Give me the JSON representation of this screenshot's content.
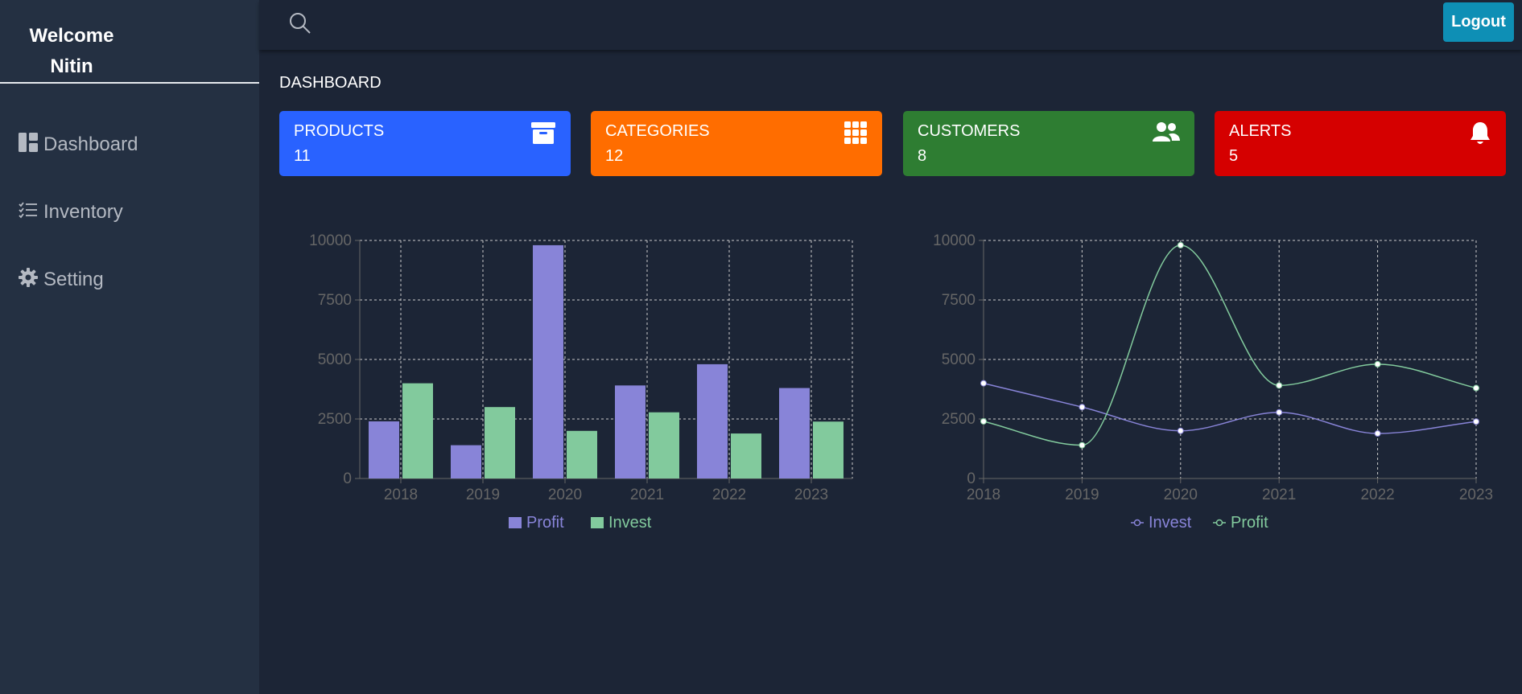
{
  "sidebar": {
    "welcome_line1": "Welcome",
    "welcome_line2": "Nitin",
    "items": [
      {
        "label": "Dashboard",
        "icon": "dashboard-icon"
      },
      {
        "label": "Inventory",
        "icon": "list-check-icon"
      },
      {
        "label": "Setting",
        "icon": "gear-icon"
      }
    ]
  },
  "header": {
    "search_icon": "search-icon",
    "logout_label": "Logout"
  },
  "page": {
    "title": "DASHBOARD"
  },
  "cards": [
    {
      "title": "PRODUCTS",
      "value": "11",
      "color": "#2962ff",
      "icon": "archive-icon"
    },
    {
      "title": "CATEGORIES",
      "value": "12",
      "color": "#ff6d00",
      "icon": "grid-icon"
    },
    {
      "title": "CUSTOMERS",
      "value": "8",
      "color": "#2e7d32",
      "icon": "users-icon"
    },
    {
      "title": "ALERTS",
      "value": "5",
      "color": "#d50000",
      "icon": "bell-icon"
    }
  ],
  "colors": {
    "profit": "#8884d8",
    "invest": "#82ca9d",
    "axis": "#666666",
    "grid": "#cccccc"
  },
  "chart_data": [
    {
      "type": "bar",
      "categories": [
        "2018",
        "2019",
        "2020",
        "2021",
        "2022",
        "2023"
      ],
      "series": [
        {
          "name": "Profit",
          "values": [
            2400,
            1398,
            9800,
            3908,
            4800,
            3800
          ]
        },
        {
          "name": "Invest",
          "values": [
            4000,
            3000,
            2000,
            2780,
            1890,
            2390
          ]
        }
      ],
      "yticks": [
        "0",
        "2500",
        "5000",
        "7500",
        "10000"
      ],
      "ylim": [
        0,
        10000
      ],
      "grid": true,
      "legend": "bottom"
    },
    {
      "type": "line",
      "categories": [
        "2018",
        "2019",
        "2020",
        "2021",
        "2022",
        "2023"
      ],
      "series": [
        {
          "name": "Invest",
          "values": [
            4000,
            3000,
            2000,
            2780,
            1890,
            2390
          ]
        },
        {
          "name": "Profit",
          "values": [
            2400,
            1398,
            9800,
            3908,
            4800,
            3800
          ]
        }
      ],
      "yticks": [
        "0",
        "2500",
        "5000",
        "7500",
        "10000"
      ],
      "ylim": [
        0,
        10000
      ],
      "grid": true,
      "legend": "bottom"
    }
  ]
}
